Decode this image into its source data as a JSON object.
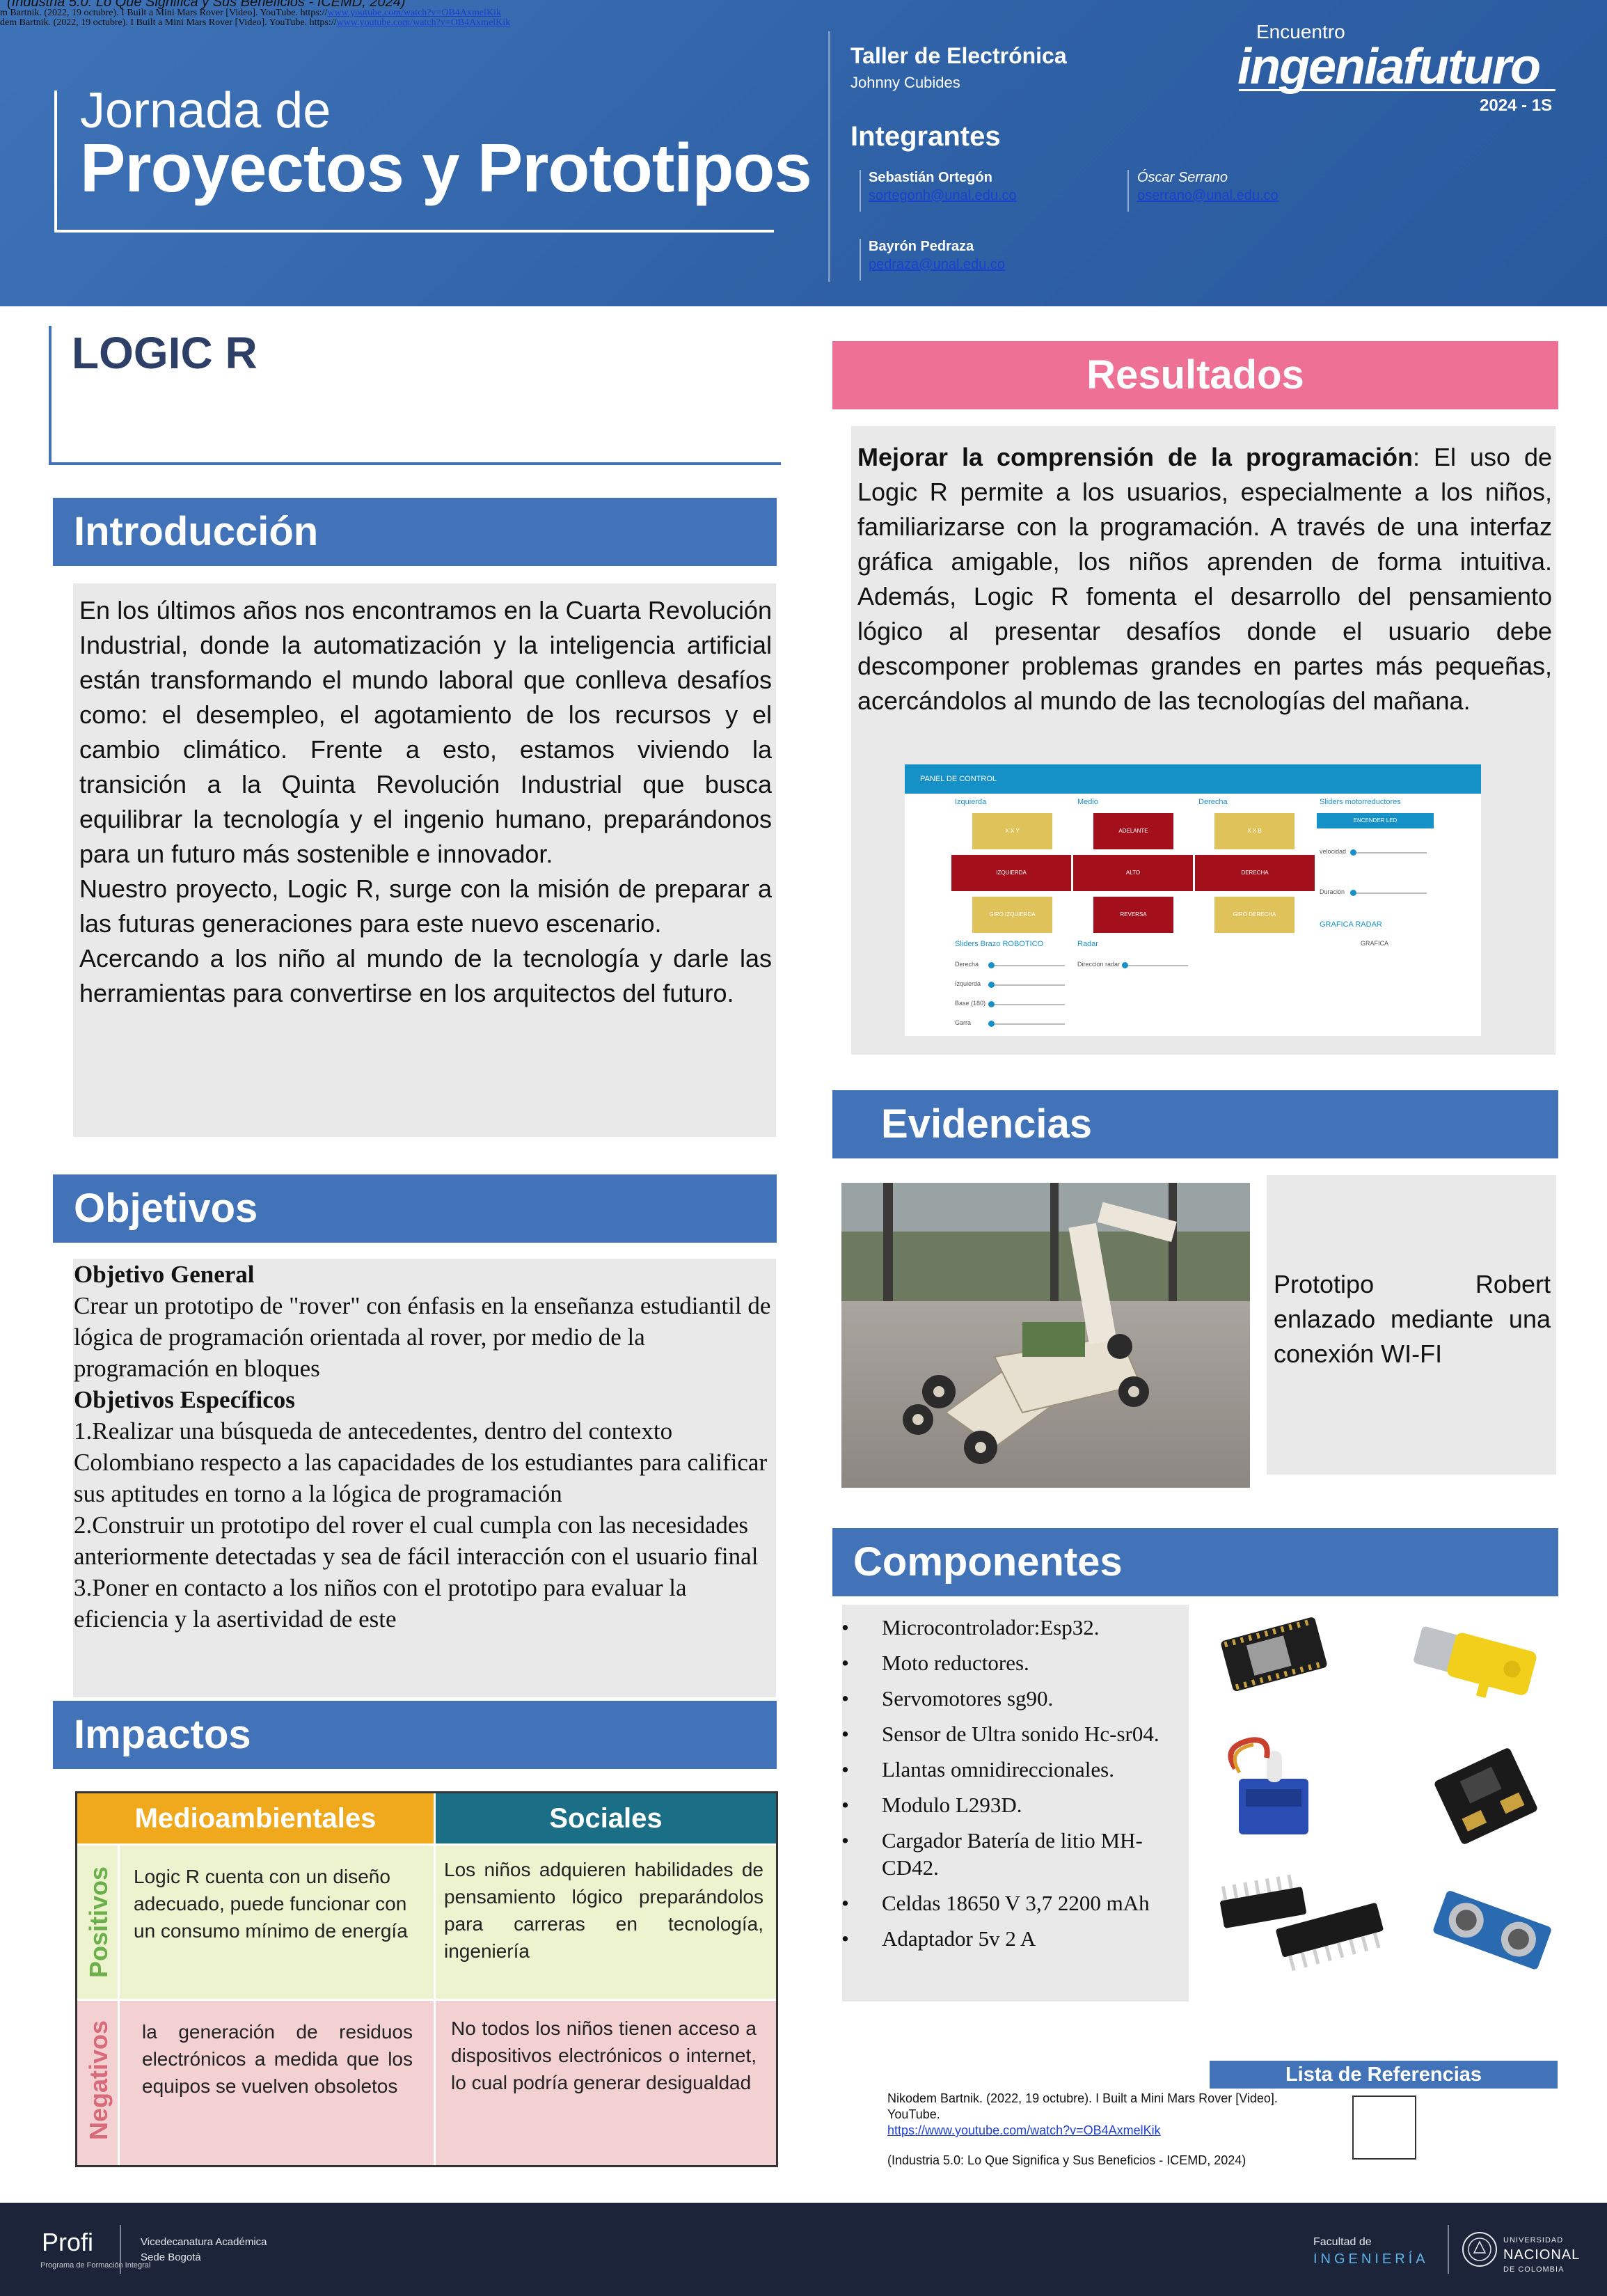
{
  "header": {
    "top_refs": {
      "line1": "(Industria 5.0: Lo Que Significa y Sus Beneficios - ICEMD, 2024)",
      "line2_prefix": "m Bartnik. (2022, 19 octubre). I Built a Mini Mars Rover [Video]. YouTube. https://",
      "line2_link": "www.youtube.com/watch?v=OB4AxmelKik",
      "line3_prefix": "dem Bartnik. (2022, 19 octubre). I Built a Mini Mars Rover [Video]. YouTube. https://",
      "line3_link": "www.youtube.com/watch?v=OB4AxmelKik"
    },
    "title_line1": "Jornada de",
    "title_line2": "Proyectos y Prototipos",
    "workshop": "Taller de Electrónica",
    "teacher": "Johnny Cubides",
    "members_title": "Integrantes",
    "members": [
      {
        "name": "Sebastián Ortegón",
        "email": "sortegonh@unal.edu.co"
      },
      {
        "name": "Óscar Serrano",
        "email": "oserrano@unal.edu.co"
      },
      {
        "name": "Bayrón Pedraza",
        "email": "pedraza@unal.edu.co"
      }
    ],
    "logo": {
      "small": "Encuentro",
      "main": "ingeniafuturo",
      "year": "2024 - 1S"
    }
  },
  "project": {
    "title": "LOGIC R"
  },
  "intro": {
    "heading": "Introducción",
    "p1": "En los últimos años nos encontramos en la Cuarta Revolución Industrial, donde la automatización y la inteligencia artificial están transformando el mundo laboral que conlleva desafíos como: el desempleo, el agotamiento de los recursos y el cambio climático. Frente a esto, estamos viviendo la transición a la Quinta Revolución Industrial que busca equilibrar la tecnología y el ingenio humano, preparándonos para un futuro más sostenible e innovador.",
    "p2": "Nuestro proyecto, Logic R, surge con la misión de preparar a las futuras generaciones para este nuevo escenario.",
    "p3": "Acercando a los niño al mundo de la tecnología y darle las herramientas para convertirse en los arquitectos del futuro."
  },
  "objetivos": {
    "heading": "Objetivos",
    "general_title": "Objetivo General",
    "general_text": "Crear un prototipo de \"rover\" con énfasis en la enseñanza estudiantil de lógica de programación orientada al rover, por medio de la programación en bloques",
    "specific_title": "Objetivos Específicos",
    "specific": [
      "1.Realizar una búsqueda de antecedentes, dentro del contexto Colombiano respecto a las capacidades de los estudiantes para calificar sus aptitudes en torno a la lógica de programación",
      "2.Construir un prototipo del rover el cual cumpla con las necesidades anteriormente detectadas y sea de fácil interacción con el usuario final",
      "3.Poner en contacto a los niños con el prototipo para evaluar la eficiencia y la asertividad de este"
    ]
  },
  "impactos": {
    "heading": "Impactos",
    "col1": "Medioambientales",
    "col2": "Sociales",
    "row1": "Positivos",
    "row2": "Negativos",
    "pos_env": "Logic R cuenta con un diseño adecuado, puede funcionar con un consumo mínimo de energía",
    "pos_soc": "Los niños adquieren habilidades de pensamiento lógico preparándolos para carreras en tecnología, ingeniería",
    "neg_env": "la generación de residuos electrónicos a medida que los equipos se vuelven obsoletos",
    "neg_soc": "No todos los niños tienen acceso a dispositivos electrónicos o internet, lo cual podría generar desigualdad",
    "colors": {
      "env": "#f0a81c",
      "soc": "#1a6f86",
      "pos": "#6bb04a",
      "neg": "#d86a7a"
    }
  },
  "resultados": {
    "heading": "Resultados",
    "bold_lead": "Mejorar la comprensión de la programación",
    "text": ": El uso de Logic R permite a los usuarios, especialmente a los niños, familiarizarse con la programación. A través de una interfaz gráfica amigable, los niños aprenden de forma intuitiva. Además, Logic R fomenta el desarrollo del pensamiento lógico al presentar desafíos donde el usuario debe descomponer problemas grandes en partes más pequeñas, acercándolos al mundo de las tecnologías del mañana.",
    "panel": {
      "bar_title": "PANEL DE CONTROL",
      "col_left": "Izquierda",
      "col_mid": "Medio",
      "col_right": "Derecha",
      "col_sliders": "Sliders motorreductores",
      "btn_x1": "X X Y",
      "btn_adelante": "ADELANTE",
      "btn_x2": "X X B",
      "btn_izquierda": "IZQUIERDA",
      "btn_alto": "ALTO",
      "btn_derecha": "DERECHA",
      "btn_giro1": "GIRO IZQUIERDA",
      "btn_reversa": "REVERSA",
      "btn_giro2": "GIRO DERECHA",
      "btn_encender": "ENCENDER LED",
      "velocidad": "velocidad",
      "duracion": "Duración",
      "grafica_radar": "GRAFICA RADAR",
      "grafica": "GRAFICA",
      "brazo_title": "Sliders Brazo ROBOTICO",
      "radar_title": "Radar",
      "derecha": "Derecha",
      "izquierda": "Izquierda",
      "base": "Base (180)",
      "garra": "Garra",
      "direccion_radar": "Direccion radar"
    }
  },
  "evidencias": {
    "heading": "Evidencias",
    "caption": "Prototipo Robert enlazado mediante una conexión WI-FI"
  },
  "componentes": {
    "heading": "Componentes",
    "items": [
      "Microcontrolador:Esp32.",
      "Moto reductores.",
      "Servomotores sg90.",
      "Sensor de Ultra sonido Hc-sr04.",
      "Llantas omnidireccionales.",
      "Modulo L293D.",
      "Cargador Batería de litio MH-CD42.",
      "Celdas 18650 V 3,7 2200 mAh",
      "Adaptador 5v 2 A"
    ]
  },
  "referencias": {
    "heading": "Lista de Referencias",
    "ref1": "Nikodem Bartnik. (2022, 19 octubre). I Built a Mini Mars Rover [Video]. YouTube.",
    "ref1_link": "https://www.youtube.com/watch?v=OB4AxmelKik",
    "ref2": "(Industria 5.0: Lo Que Significa y Sus Beneficios - ICEMD, 2024)"
  },
  "footer": {
    "profi": "Profi",
    "profi_sub": "Programa de Formación Integral",
    "vice1": "Vicedecanatura Académica",
    "vice2": "Sede Bogotá",
    "fac1": "Facultad de",
    "fac2": "INGENIERÍA",
    "un1": "UNIVERSIDAD",
    "un2": "NACIONAL",
    "un3": "DE COLOMBIA"
  }
}
